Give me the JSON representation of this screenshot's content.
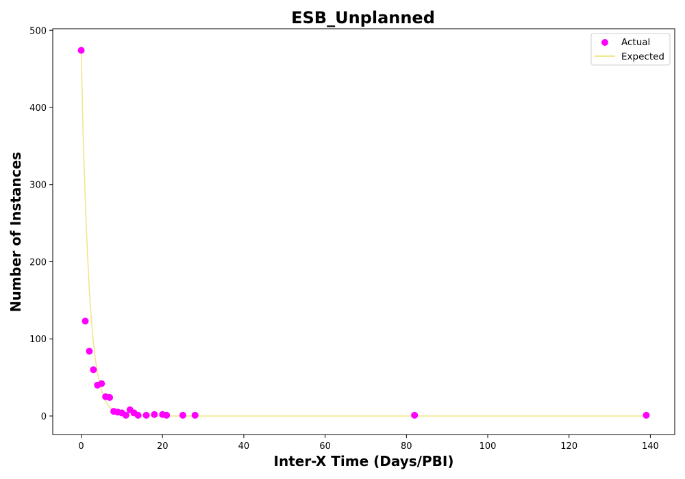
{
  "chart_data": {
    "type": "scatter",
    "title": "ESB_Unplanned",
    "xlabel": "Inter-X Time (Days/PBI)",
    "ylabel": "Number of Instances",
    "xlim": [
      -7,
      146
    ],
    "ylim": [
      -24,
      502
    ],
    "xticks": [
      0,
      20,
      40,
      60,
      80,
      100,
      120,
      140
    ],
    "yticks": [
      0,
      100,
      200,
      300,
      400,
      500
    ],
    "grid": false,
    "legend_position": "top-right",
    "series": [
      {
        "name": "Actual",
        "kind": "scatter",
        "color": "#ff00ff",
        "points": [
          [
            0,
            474
          ],
          [
            1,
            123
          ],
          [
            2,
            84
          ],
          [
            3,
            60
          ],
          [
            4,
            40
          ],
          [
            5,
            42
          ],
          [
            6,
            25
          ],
          [
            7,
            24
          ],
          [
            8,
            6
          ],
          [
            9,
            5
          ],
          [
            10,
            4
          ],
          [
            11,
            1
          ],
          [
            12,
            8
          ],
          [
            13,
            4
          ],
          [
            14,
            1
          ],
          [
            16,
            1
          ],
          [
            18,
            2
          ],
          [
            20,
            2
          ],
          [
            21,
            1
          ],
          [
            25,
            1
          ],
          [
            28,
            1
          ],
          [
            82,
            1
          ],
          [
            139,
            1
          ]
        ]
      },
      {
        "name": "Expected",
        "kind": "line",
        "color": "#f0e68c",
        "x": [
          0,
          0.5,
          1,
          1.5,
          2,
          2.5,
          3,
          3.5,
          4,
          5,
          6,
          7,
          8,
          9,
          10,
          11,
          12,
          13,
          14,
          16,
          18,
          20,
          25,
          30,
          40,
          60,
          80,
          100,
          120,
          139
        ],
        "y": [
          474,
          360,
          281,
          215,
          164,
          125,
          96,
          73,
          56,
          33,
          19,
          11,
          6.6,
          3.9,
          2.3,
          1.3,
          0.8,
          0.5,
          0.3,
          0.1,
          0.04,
          0.01,
          0,
          0,
          0,
          0,
          0,
          0,
          0,
          0
        ]
      }
    ]
  }
}
